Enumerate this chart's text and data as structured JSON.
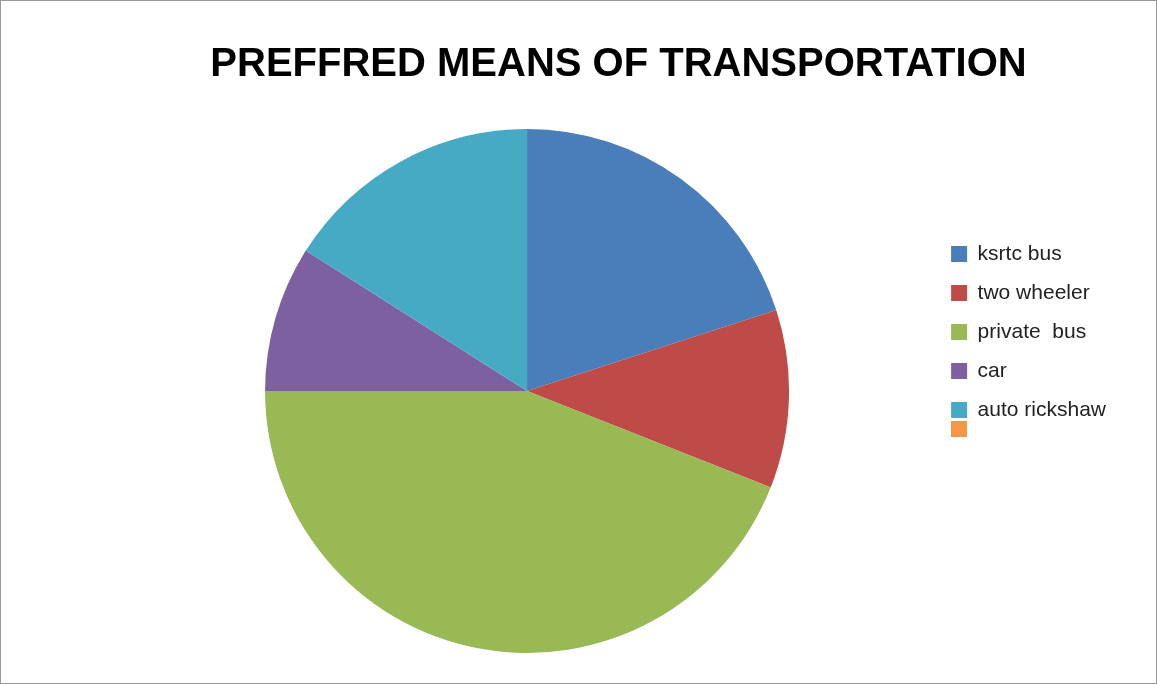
{
  "chart_data": {
    "type": "pie",
    "title": "PREFFRED MEANS OF TRANSPORTATION",
    "categories": [
      "ksrtc bus",
      "two wheeler",
      "private  bus",
      "car",
      "auto rickshaw"
    ],
    "values": [
      20,
      11,
      44,
      9,
      16
    ],
    "colors": [
      "#4a7ebb",
      "#be4b48",
      "#98b954",
      "#7d60a0",
      "#46aac5"
    ],
    "legend": "right"
  }
}
